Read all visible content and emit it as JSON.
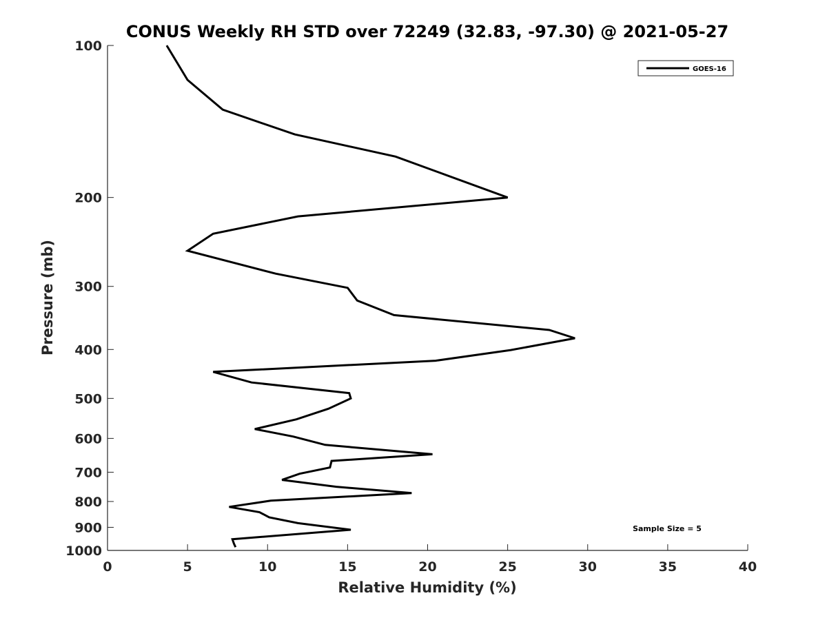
{
  "chart_data": {
    "type": "line",
    "title": "CONUS Weekly RH STD over 72249 (32.83, -97.30) @ 2021-05-27",
    "xlabel": "Relative Humidity (%)",
    "ylabel": "Pressure (mb)",
    "xlim": [
      0,
      40
    ],
    "ylim": [
      1000,
      100
    ],
    "yscale": "log",
    "xticks": [
      "0",
      "5",
      "10",
      "15",
      "20",
      "25",
      "30",
      "35",
      "40"
    ],
    "yticks": [
      "100",
      "200",
      "300",
      "400",
      "500",
      "600",
      "700",
      "800",
      "900",
      "1000"
    ],
    "grid": false,
    "legend_position": "top-right",
    "series": [
      {
        "name": "GOES-16",
        "color": "#000000",
        "x": [
          3.7,
          5.0,
          7.2,
          11.7,
          18.0,
          25.0,
          11.9,
          6.6,
          5.0,
          10.5,
          15.0,
          15.6,
          17.9,
          27.6,
          29.2,
          25.2,
          20.5,
          6.6,
          9.0,
          15.1,
          15.2,
          13.8,
          11.8,
          9.2,
          11.6,
          13.6,
          20.3,
          14.0,
          13.9,
          12.0,
          10.9,
          14.3,
          19.0,
          10.2,
          7.6,
          9.5,
          10.1,
          11.9,
          15.2,
          7.8,
          7.9,
          8.0
        ],
        "y": [
          100,
          117,
          134,
          150,
          166,
          200,
          218,
          236,
          255,
          283,
          302,
          320,
          342,
          366,
          380,
          401,
          421,
          443,
          465,
          488,
          500,
          524,
          550,
          575,
          595,
          618,
          645,
          665,
          685,
          705,
          725,
          748,
          770,
          797,
          820,
          840,
          860,
          883,
          910,
          950,
          970,
          985
        ]
      }
    ],
    "annotation": "Sample Size = 5"
  }
}
